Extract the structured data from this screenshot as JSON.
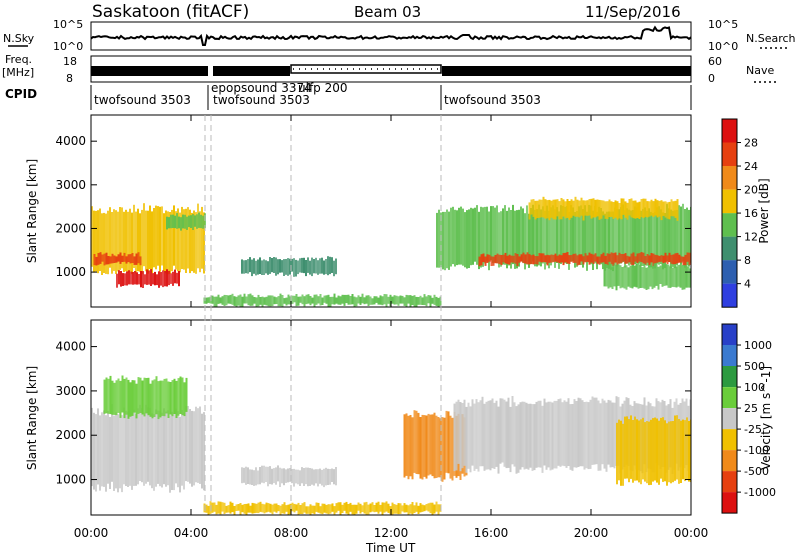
{
  "header": {
    "station": "Saskatoon (fitACF)",
    "beam": "Beam 03",
    "date": "11/Sep/2016"
  },
  "top_panels": {
    "nsky_label": "N.Sky",
    "nsearch_label": "N.Search",
    "nsky_ticks": [
      "10^5",
      "10^0"
    ],
    "nsearch_ticks": [
      "10^5",
      "10^0"
    ],
    "freq_label": "Freq.",
    "freq_unit": "[MHz]",
    "freq_ticks": [
      "18",
      "8"
    ],
    "nave_label": "Nave",
    "nave_ticks": [
      "60",
      "0"
    ],
    "cpid_label": "CPID",
    "cpid_segments": [
      {
        "name": "twofsound 3503",
        "start_h": 0.0,
        "end_h": 4.9
      },
      {
        "name": "epopsound 3374",
        "start_h": 4.9,
        "end_h": 8.0
      },
      {
        "name": "twofsound 3503",
        "start_h": 4.9,
        "end_h": 8.0
      },
      {
        "name": "ulfp 200",
        "start_h": 8.0,
        "end_h": 14.0
      },
      {
        "name": "twofsound 3503",
        "start_h": 14.0,
        "end_h": 24.0
      }
    ]
  },
  "chart_data": [
    {
      "type": "heatmap",
      "ylabel": "Slant Range [km]",
      "yticks": [
        1000,
        2000,
        3000,
        4000
      ],
      "ylim": [
        200,
        4600
      ],
      "xlim": [
        0,
        24
      ],
      "colorbar_label": "Power [dB]",
      "colorbar_ticks": [
        "4",
        "8",
        "12",
        "16",
        "20",
        "24",
        "28"
      ],
      "colorbar_colors": [
        "#2f3fe0",
        "#2d5fb0",
        "#3f8f6f",
        "#5fbf4f",
        "#f0c000",
        "#f08a1a",
        "#e64010",
        "#dc1010"
      ],
      "echo_regions": [
        {
          "x": [
            0.0,
            4.5
          ],
          "y": [
            1000,
            2500
          ],
          "level": 14
        },
        {
          "x": [
            0.1,
            2.0
          ],
          "y": [
            1150,
            1450
          ],
          "level": 24
        },
        {
          "x": [
            1.0,
            3.5
          ],
          "y": [
            650,
            1050
          ],
          "level": 27
        },
        {
          "x": [
            3.0,
            4.6
          ],
          "y": [
            1950,
            2350
          ],
          "level": 10
        },
        {
          "x": [
            6.0,
            9.8
          ],
          "y": [
            900,
            1350
          ],
          "level": 8
        },
        {
          "x": [
            4.5,
            14.0
          ],
          "y": [
            200,
            500
          ],
          "level": 12
        },
        {
          "x": [
            13.8,
            24.0
          ],
          "y": [
            1100,
            2500
          ],
          "level": 12
        },
        {
          "x": [
            15.5,
            24.0
          ],
          "y": [
            1150,
            1450
          ],
          "level": 22
        },
        {
          "x": [
            17.5,
            23.5
          ],
          "y": [
            2200,
            2700
          ],
          "level": 14
        },
        {
          "x": [
            20.5,
            24.0
          ],
          "y": [
            600,
            1200
          ],
          "level": 10
        }
      ]
    },
    {
      "type": "heatmap",
      "ylabel": "Slant Range [km]",
      "yticks": [
        1000,
        2000,
        3000,
        4000
      ],
      "ylim": [
        200,
        4600
      ],
      "xlim": [
        0,
        24
      ],
      "xlabel": "Time UT",
      "xticks": [
        "00:00",
        "04:00",
        "08:00",
        "12:00",
        "16:00",
        "20:00",
        "00:00"
      ],
      "colorbar_label": "Velocity [m s^-1]",
      "colorbar_ticks": [
        "1000",
        "500",
        "100",
        "25",
        "-25",
        "-100",
        "-500",
        "-1000"
      ],
      "colorbar_colors": [
        "#2840c8",
        "#3a7ad0",
        "#2c9a40",
        "#6acd3a",
        "#c8c8c8",
        "#f0c000",
        "#f08a1a",
        "#e64010",
        "#dc1010"
      ],
      "echo_regions": [
        {
          "x": [
            0.0,
            4.5
          ],
          "y": [
            800,
            2600
          ],
          "level": 0
        },
        {
          "x": [
            0.5,
            3.8
          ],
          "y": [
            2400,
            3300
          ],
          "level": 40
        },
        {
          "x": [
            6.0,
            9.8
          ],
          "y": [
            850,
            1300
          ],
          "level": 0
        },
        {
          "x": [
            4.5,
            14.0
          ],
          "y": [
            200,
            500
          ],
          "level": -50
        },
        {
          "x": [
            12.5,
            15.0
          ],
          "y": [
            1000,
            2500
          ],
          "level": -200
        },
        {
          "x": [
            14.5,
            24.0
          ],
          "y": [
            1200,
            2800
          ],
          "level": 0
        },
        {
          "x": [
            21.0,
            24.0
          ],
          "y": [
            900,
            2400
          ],
          "level": -80
        }
      ]
    }
  ]
}
